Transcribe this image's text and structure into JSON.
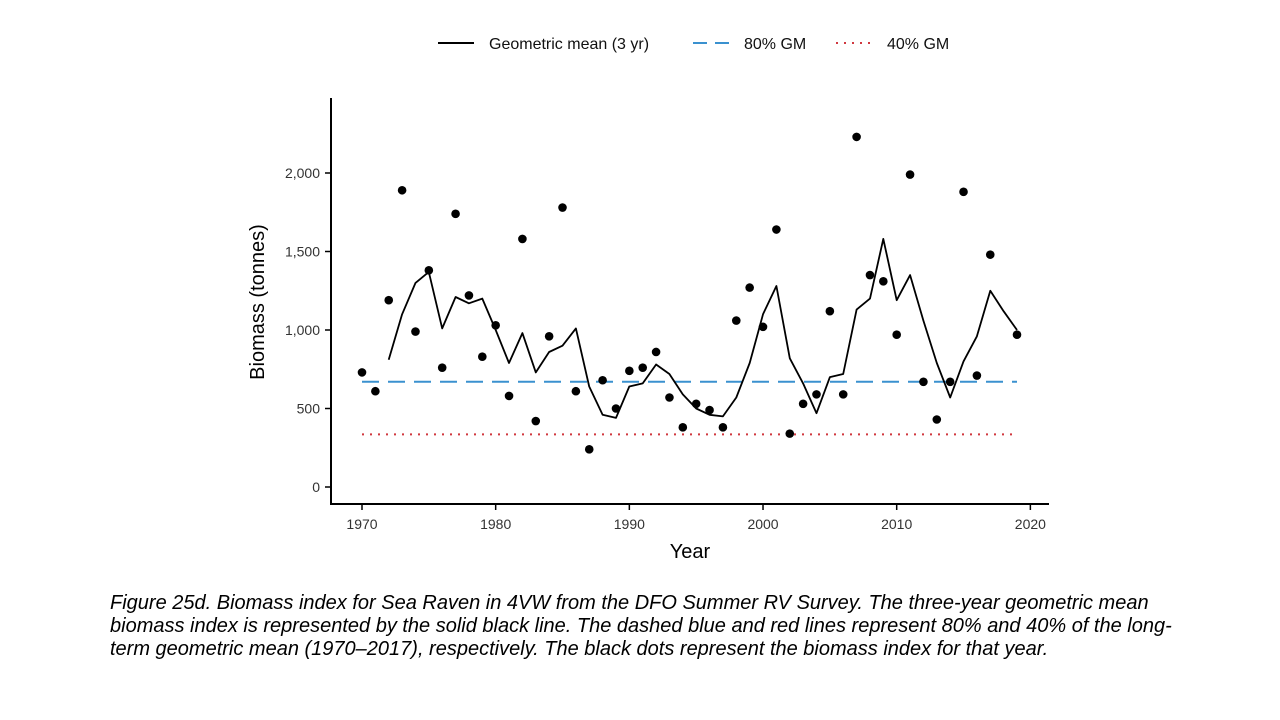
{
  "chart_data": {
    "type": "line",
    "xlabel": "Year",
    "ylabel": "Biomass (tonnes)",
    "xlim": [
      1967,
      2021
    ],
    "ylim": [
      0,
      2400
    ],
    "x_ticks": [
      1970,
      1980,
      1990,
      2000,
      2010,
      2020
    ],
    "x_tick_labels": [
      "1970",
      "1980",
      "1990",
      "2000",
      "2010",
      "2020"
    ],
    "y_ticks": [
      0,
      500,
      1000,
      1500,
      2000
    ],
    "y_tick_labels": [
      "0",
      "500",
      "1,000",
      "1,500",
      "2,000"
    ],
    "legend_position": "top",
    "grid": false,
    "series": [
      {
        "name": "Geometric mean (3 yr)",
        "style": "solid",
        "color": "#000000",
        "x": [
          1972,
          1973,
          1974,
          1975,
          1976,
          1977,
          1978,
          1979,
          1980,
          1981,
          1982,
          1983,
          1984,
          1985,
          1986,
          1987,
          1988,
          1989,
          1990,
          1991,
          1992,
          1993,
          1994,
          1995,
          1996,
          1997,
          1998,
          1999,
          2000,
          2001,
          2002,
          2003,
          2004,
          2005,
          2006,
          2007,
          2008,
          2009,
          2010,
          2011,
          2012,
          2013,
          2014,
          2015,
          2016,
          2017,
          2018,
          2019
        ],
        "y": [
          810,
          1100,
          1300,
          1370,
          1010,
          1210,
          1170,
          1200,
          1000,
          790,
          980,
          730,
          860,
          900,
          1010,
          640,
          460,
          440,
          640,
          660,
          780,
          720,
          590,
          500,
          460,
          450,
          570,
          790,
          1100,
          1280,
          820,
          660,
          470,
          700,
          720,
          1130,
          1200,
          1580,
          1190,
          1350,
          1060,
          790,
          570,
          800,
          960,
          1250,
          1120,
          1000
        ]
      },
      {
        "name": "80% GM",
        "style": "dashed",
        "color": "#3a91cf",
        "x": [
          1970,
          2019
        ],
        "y": [
          670,
          670
        ]
      },
      {
        "name": "40% GM",
        "style": "dotted",
        "color": "#d0383f",
        "x": [
          1970,
          2019
        ],
        "y": [
          335,
          335
        ]
      },
      {
        "name": "",
        "style": "points",
        "color": "#000000",
        "x": [
          1970,
          1971,
          1972,
          1973,
          1974,
          1975,
          1976,
          1977,
          1978,
          1979,
          1980,
          1981,
          1982,
          1983,
          1984,
          1985,
          1986,
          1987,
          1988,
          1989,
          1990,
          1991,
          1992,
          1993,
          1994,
          1995,
          1996,
          1997,
          1998,
          1999,
          2000,
          2001,
          2002,
          2003,
          2004,
          2005,
          2006,
          2007,
          2008,
          2009,
          2010,
          2011,
          2012,
          2013,
          2014,
          2015,
          2016,
          2017,
          2019
        ],
        "y": [
          730,
          610,
          1190,
          1890,
          990,
          1380,
          760,
          1740,
          1220,
          830,
          1030,
          580,
          1580,
          420,
          960,
          1780,
          610,
          240,
          680,
          500,
          740,
          760,
          860,
          570,
          380,
          530,
          490,
          380,
          1060,
          1270,
          1020,
          1640,
          340,
          530,
          590,
          1120,
          590,
          2230,
          1350,
          1310,
          970,
          1990,
          670,
          430,
          670,
          1880,
          710,
          1480,
          970
        ]
      }
    ]
  },
  "caption": "Figure 25d. Biomass index for Sea Raven in 4VW from the DFO Summer RV Survey. The three-year geometric mean biomass index is represented by the solid black line. The dashed blue and red lines represent 80% and 40% of the long-term geometric mean (1970–2017), respectively. The black dots represent the biomass index for that year."
}
